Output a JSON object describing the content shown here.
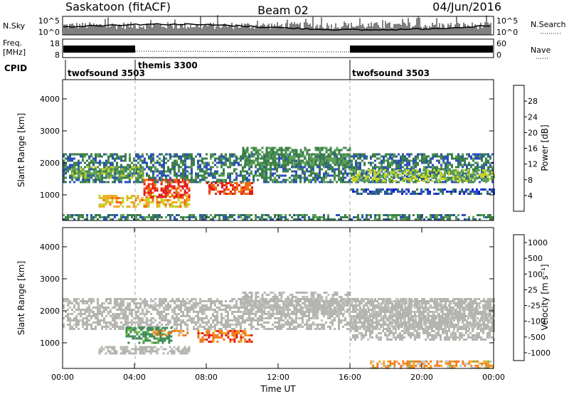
{
  "header": {
    "station": "Saskatoon (fitACF)",
    "beam": "Beam 02",
    "date": "04/Jun/2016"
  },
  "top_panels": {
    "nsky_label": "N.Sky",
    "nsky_ticks": [
      "10^5",
      "10^0"
    ],
    "nsearch_label": "N.Search",
    "nsearch_ticks": [
      "10^5",
      "10^0"
    ],
    "freq_label_1": "Freq.",
    "freq_label_2": "[MHz]",
    "freq_ticks": [
      "18",
      "8"
    ],
    "nave_label": "Nave",
    "nave_ticks": [
      "60",
      "0"
    ],
    "cpid_label": "CPID",
    "modes": [
      {
        "name": "twofsound 3503",
        "start_h": 0,
        "end_h": 4
      },
      {
        "name": "themis 3300",
        "start_h": 4,
        "end_h": 16
      },
      {
        "name": "twofsound 3503",
        "start_h": 16,
        "end_h": 24
      }
    ]
  },
  "colors": {
    "power_scale": [
      "#0a1ed6",
      "#2a4fb8",
      "#3a7f4a",
      "#5ea05a",
      "#c8d22a",
      "#f5a623",
      "#f06a10",
      "#e41a1a"
    ],
    "velocity_scale": [
      "#2a3a9e",
      "#3a5fb5",
      "#3e8a55",
      "#6fc43a",
      "#c4c4c0",
      "#f5a623",
      "#f07a1a",
      "#e41a1a"
    ],
    "ground_scatter": "#b4b4b0"
  },
  "chart_data": [
    {
      "type": "heatmap",
      "name": "power",
      "ylabel": "Slant Range [km]",
      "yticks": [
        1000,
        2000,
        3000,
        4000
      ],
      "ylim": [
        200,
        4600
      ],
      "xlim": [
        0,
        24
      ],
      "colorbar_label": "Power [dB]",
      "colorbar_ticks": [
        "4",
        "8",
        "12",
        "16",
        "20",
        "24",
        "28"
      ],
      "colorbar_range": [
        0,
        32
      ],
      "regions": [
        {
          "t0": 0,
          "t1": 24,
          "r0": 1400,
          "r1": 2300,
          "level": 9
        },
        {
          "t0": 0.5,
          "t1": 4.5,
          "r0": 1500,
          "r1": 1900,
          "level": 14
        },
        {
          "t0": 2,
          "t1": 7,
          "r0": 650,
          "r1": 1000,
          "level": 21
        },
        {
          "t0": 4.5,
          "t1": 7,
          "r0": 900,
          "r1": 1500,
          "level": 29
        },
        {
          "t0": 8,
          "t1": 10.5,
          "r0": 1000,
          "r1": 1400,
          "level": 28
        },
        {
          "t0": 10,
          "t1": 16,
          "r0": 1900,
          "r1": 2500,
          "level": 12
        },
        {
          "t0": 16,
          "t1": 24,
          "r0": 1400,
          "r1": 1800,
          "level": 16
        },
        {
          "t0": 16,
          "t1": 24,
          "r0": 1000,
          "r1": 1200,
          "level": 6
        },
        {
          "t0": 0,
          "t1": 24,
          "r0": 200,
          "r1": 400,
          "level": 10
        }
      ]
    },
    {
      "type": "heatmap",
      "name": "velocity",
      "ylabel": "Slant Range [km]",
      "yticks": [
        1000,
        2000,
        3000,
        4000
      ],
      "ylim": [
        200,
        4600
      ],
      "xlim": [
        0,
        24
      ],
      "xticks": [
        "00:00",
        "04:00",
        "08:00",
        "12:00",
        "16:00",
        "20:00",
        "00:00"
      ],
      "xlabel": "Time UT",
      "colorbar_label": "Velocity [m s⁻¹]",
      "colorbar_ticks": [
        "1000",
        "500",
        "100",
        "25",
        "-25",
        "-100",
        "-500",
        "-1000"
      ],
      "regions": [
        {
          "t0": 0,
          "t1": 24,
          "r0": 1400,
          "r1": 2400,
          "velocity": 0
        },
        {
          "t0": 2,
          "t1": 7,
          "r0": 650,
          "r1": 900,
          "velocity": 0
        },
        {
          "t0": 3.5,
          "t1": 6,
          "r0": 1000,
          "r1": 1500,
          "velocity": 300
        },
        {
          "t0": 5,
          "t1": 7,
          "r0": 1200,
          "r1": 1400,
          "velocity": -200
        },
        {
          "t0": 7.5,
          "t1": 10.5,
          "r0": 1000,
          "r1": 1400,
          "velocity": -300
        },
        {
          "t0": 10,
          "t1": 16,
          "r0": 1900,
          "r1": 2600,
          "velocity": 0
        },
        {
          "t0": 16,
          "t1": 24,
          "r0": 1100,
          "r1": 2400,
          "velocity": 0
        },
        {
          "t0": 17,
          "t1": 24,
          "r0": 200,
          "r1": 450,
          "velocity": -150
        }
      ]
    }
  ]
}
